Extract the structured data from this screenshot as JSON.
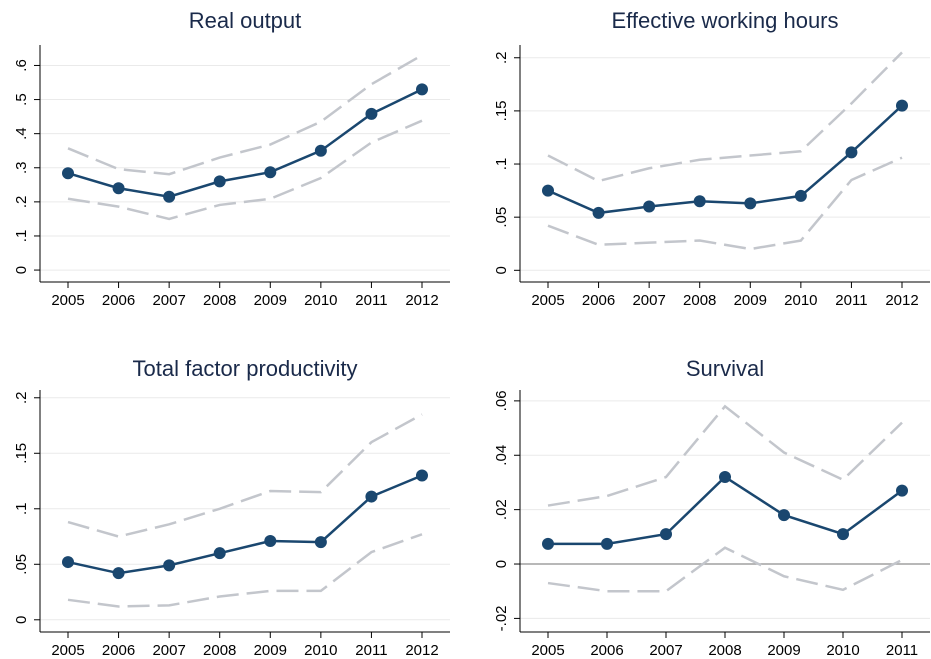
{
  "chart_data": [
    {
      "type": "line",
      "title": "Real output",
      "categories": [
        "2005",
        "2006",
        "2007",
        "2008",
        "2009",
        "2010",
        "2011",
        "2012"
      ],
      "series": [
        {
          "color": "#1a476f",
          "markers": true,
          "dash": false,
          "values": [
            0.284,
            0.24,
            0.215,
            0.26,
            0.287,
            0.35,
            0.458,
            0.53
          ]
        },
        {
          "color": "#c3c6cc",
          "markers": false,
          "dash": true,
          "values": [
            0.357,
            0.296,
            0.281,
            0.33,
            0.368,
            0.435,
            0.545,
            0.63
          ]
        },
        {
          "color": "#c3c6cc",
          "markers": false,
          "dash": true,
          "values": [
            0.209,
            0.186,
            0.15,
            0.191,
            0.209,
            0.27,
            0.374,
            0.438
          ]
        }
      ],
      "ylim": [
        -0.035,
        0.66
      ],
      "yticks": [
        0,
        {
          "value": 0.1,
          "label": ".1"
        },
        {
          "value": 0.2,
          "label": ".2"
        },
        {
          "value": 0.3,
          "label": ".3"
        },
        {
          "value": 0.4,
          "label": ".4"
        },
        {
          "value": 0.5,
          "label": ".5"
        },
        {
          "value": 0.6,
          "label": ".6"
        }
      ],
      "grid": true,
      "zero_line": false
    },
    {
      "type": "line",
      "title": "Effective working hours",
      "categories": [
        "2005",
        "2006",
        "2007",
        "2008",
        "2009",
        "2010",
        "2011",
        "2012"
      ],
      "series": [
        {
          "color": "#1a476f",
          "markers": true,
          "dash": false,
          "values": [
            0.075,
            0.054,
            0.06,
            0.065,
            0.063,
            0.07,
            0.111,
            0.155
          ]
        },
        {
          "color": "#c3c6cc",
          "markers": false,
          "dash": true,
          "values": [
            0.108,
            0.084,
            0.096,
            0.104,
            0.108,
            0.112,
            0.157,
            0.205
          ]
        },
        {
          "color": "#c3c6cc",
          "markers": false,
          "dash": true,
          "values": [
            0.042,
            0.024,
            0.026,
            0.028,
            0.02,
            0.028,
            0.085,
            0.106
          ]
        }
      ],
      "ylim": [
        -0.011,
        0.212
      ],
      "yticks": [
        0,
        {
          "value": 0.05,
          "label": ".05"
        },
        {
          "value": 0.1,
          "label": ".1"
        },
        {
          "value": 0.15,
          "label": ".15"
        },
        {
          "value": 0.2,
          "label": ".2"
        }
      ],
      "grid": true,
      "zero_line": false
    },
    {
      "type": "line",
      "title": "Total factor productivity",
      "categories": [
        "2005",
        "2006",
        "2007",
        "2008",
        "2009",
        "2010",
        "2011",
        "2012"
      ],
      "series": [
        {
          "color": "#1a476f",
          "markers": true,
          "dash": false,
          "values": [
            0.052,
            0.042,
            0.049,
            0.06,
            0.071,
            0.07,
            0.111,
            0.13
          ]
        },
        {
          "color": "#c3c6cc",
          "markers": false,
          "dash": true,
          "values": [
            0.088,
            0.075,
            0.086,
            0.1,
            0.116,
            0.115,
            0.16,
            0.185
          ]
        },
        {
          "color": "#c3c6cc",
          "markers": false,
          "dash": true,
          "values": [
            0.018,
            0.012,
            0.013,
            0.021,
            0.026,
            0.026,
            0.061,
            0.077
          ]
        }
      ],
      "ylim": [
        -0.011,
        0.207
      ],
      "yticks": [
        0,
        {
          "value": 0.05,
          "label": ".05"
        },
        {
          "value": 0.1,
          "label": ".1"
        },
        {
          "value": 0.15,
          "label": ".15"
        },
        {
          "value": 0.2,
          "label": ".2"
        }
      ],
      "grid": true,
      "zero_line": false
    },
    {
      "type": "line",
      "title": "Survival",
      "categories": [
        "2005",
        "2006",
        "2007",
        "2008",
        "2009",
        "2010",
        "2011"
      ],
      "series": [
        {
          "color": "#1a476f",
          "markers": true,
          "dash": false,
          "values": [
            0.0074,
            0.0074,
            0.011,
            0.032,
            0.018,
            0.011,
            0.027
          ]
        },
        {
          "color": "#c3c6cc",
          "markers": false,
          "dash": true,
          "values": [
            0.0215,
            0.025,
            0.032,
            0.058,
            0.041,
            0.031,
            0.052
          ]
        },
        {
          "color": "#c3c6cc",
          "markers": false,
          "dash": true,
          "values": [
            -0.007,
            -0.01,
            -0.01,
            0.006,
            -0.0045,
            -0.0095,
            0.0015
          ]
        }
      ],
      "ylim": [
        -0.025,
        0.064
      ],
      "yticks": [
        {
          "value": -0.02,
          "label": "-.02"
        },
        0,
        {
          "value": 0.02,
          "label": ".02"
        },
        {
          "value": 0.04,
          "label": ".04"
        },
        {
          "value": 0.06,
          "label": ".06"
        }
      ],
      "grid": true,
      "zero_line": true
    }
  ]
}
